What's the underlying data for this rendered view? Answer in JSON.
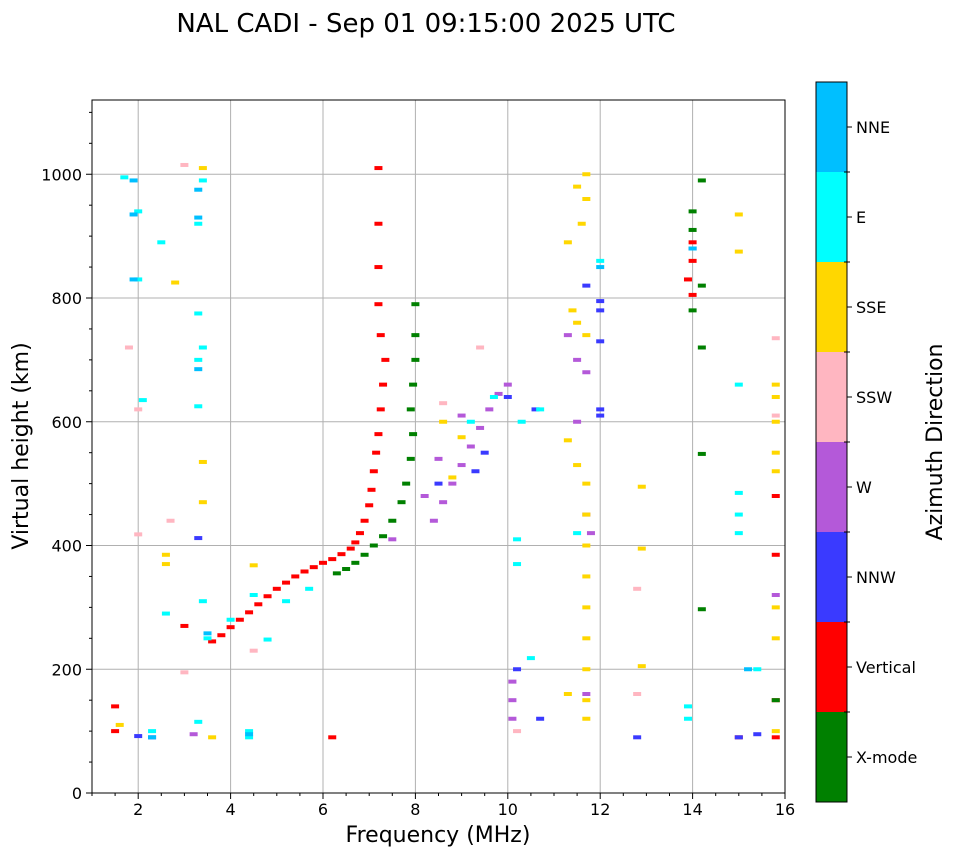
{
  "chart_data": {
    "type": "scatter",
    "title": "NAL CADI - Sep 01 09:15:00 2025 UTC",
    "xlabel": "Frequency (MHz)",
    "ylabel": "Virtual height (km)",
    "xlim": [
      1,
      16
    ],
    "ylim": [
      0,
      1120
    ],
    "xticks": [
      2,
      4,
      6,
      8,
      10,
      12,
      14,
      16
    ],
    "yticks": [
      0,
      200,
      400,
      600,
      800,
      1000
    ],
    "grid": true,
    "colorbar": {
      "title": "Azimuth Direction",
      "categories": [
        {
          "name": "X-mode",
          "color": "#008000"
        },
        {
          "name": "Vertical",
          "color": "#ff0000"
        },
        {
          "name": "NNW",
          "color": "#3a3aff"
        },
        {
          "name": "W",
          "color": "#b459d9"
        },
        {
          "name": "SSW",
          "color": "#ffb6c1"
        },
        {
          "name": "SSE",
          "color": "#ffd700"
        },
        {
          "name": "E",
          "color": "#00ffff"
        },
        {
          "name": "NNE",
          "color": "#00bfff"
        }
      ]
    },
    "series": [
      {
        "name": "Vertical",
        "points": [
          [
            3.6,
            245
          ],
          [
            3.8,
            255
          ],
          [
            4.0,
            268
          ],
          [
            4.2,
            280
          ],
          [
            4.4,
            292
          ],
          [
            4.6,
            305
          ],
          [
            4.8,
            318
          ],
          [
            5.0,
            330
          ],
          [
            5.2,
            340
          ],
          [
            5.4,
            350
          ],
          [
            5.6,
            358
          ],
          [
            5.8,
            365
          ],
          [
            6.0,
            372
          ],
          [
            6.2,
            378
          ],
          [
            6.4,
            386
          ],
          [
            6.6,
            395
          ],
          [
            6.7,
            405
          ],
          [
            6.8,
            420
          ],
          [
            6.9,
            440
          ],
          [
            7.0,
            465
          ],
          [
            7.05,
            490
          ],
          [
            7.1,
            520
          ],
          [
            7.15,
            550
          ],
          [
            7.2,
            580
          ],
          [
            7.25,
            620
          ],
          [
            7.3,
            660
          ],
          [
            7.35,
            700
          ],
          [
            7.25,
            740
          ],
          [
            7.2,
            790
          ],
          [
            7.2,
            850
          ],
          [
            7.2,
            920
          ],
          [
            7.2,
            1010
          ],
          [
            1.5,
            140
          ],
          [
            1.5,
            100
          ],
          [
            3.0,
            270
          ],
          [
            6.2,
            90
          ],
          [
            14.0,
            890
          ],
          [
            14.0,
            860
          ],
          [
            13.9,
            830
          ],
          [
            14.0,
            805
          ],
          [
            15.0,
            90
          ],
          [
            15.8,
            90
          ],
          [
            15.8,
            150
          ],
          [
            15.8,
            385
          ],
          [
            15.8,
            480
          ]
        ]
      },
      {
        "name": "X-mode",
        "points": [
          [
            6.3,
            355
          ],
          [
            6.5,
            362
          ],
          [
            6.7,
            372
          ],
          [
            6.9,
            385
          ],
          [
            7.1,
            400
          ],
          [
            7.3,
            415
          ],
          [
            7.5,
            440
          ],
          [
            7.7,
            470
          ],
          [
            7.8,
            500
          ],
          [
            7.9,
            540
          ],
          [
            7.95,
            580
          ],
          [
            7.9,
            620
          ],
          [
            7.95,
            660
          ],
          [
            8.0,
            700
          ],
          [
            8.0,
            740
          ],
          [
            8.0,
            790
          ],
          [
            14.2,
            990
          ],
          [
            14.0,
            940
          ],
          [
            14.0,
            910
          ],
          [
            14.2,
            820
          ],
          [
            14.0,
            780
          ],
          [
            14.2,
            720
          ],
          [
            14.2,
            548
          ],
          [
            14.2,
            297
          ],
          [
            15.8,
            150
          ]
        ]
      },
      {
        "name": "NNW",
        "points": [
          [
            12.0,
            610
          ],
          [
            12.0,
            620
          ],
          [
            12.0,
            730
          ],
          [
            12.0,
            780
          ],
          [
            12.0,
            795
          ],
          [
            11.7,
            820
          ],
          [
            14.0,
            880
          ],
          [
            10.0,
            640
          ],
          [
            10.6,
            620
          ],
          [
            9.5,
            550
          ],
          [
            9.3,
            520
          ],
          [
            8.5,
            500
          ],
          [
            10.2,
            200
          ],
          [
            10.7,
            120
          ],
          [
            2.0,
            92
          ],
          [
            2.3,
            90
          ],
          [
            3.3,
            412
          ],
          [
            12.8,
            90
          ],
          [
            15.4,
            95
          ],
          [
            15.0,
            90
          ]
        ]
      },
      {
        "name": "W",
        "points": [
          [
            8.4,
            440
          ],
          [
            8.6,
            470
          ],
          [
            8.8,
            500
          ],
          [
            9.0,
            530
          ],
          [
            9.2,
            560
          ],
          [
            9.4,
            590
          ],
          [
            9.6,
            620
          ],
          [
            9.8,
            645
          ],
          [
            10.0,
            660
          ],
          [
            8.2,
            480
          ],
          [
            8.5,
            540
          ],
          [
            9.0,
            610
          ],
          [
            11.3,
            740
          ],
          [
            11.5,
            700
          ],
          [
            11.7,
            680
          ],
          [
            11.5,
            600
          ],
          [
            11.7,
            450
          ],
          [
            11.8,
            420
          ],
          [
            11.7,
            160
          ],
          [
            10.1,
            180
          ],
          [
            10.1,
            150
          ],
          [
            10.1,
            120
          ],
          [
            7.5,
            410
          ],
          [
            3.2,
            95
          ],
          [
            15.8,
            320
          ]
        ]
      },
      {
        "name": "SSW",
        "points": [
          [
            15.8,
            735
          ],
          [
            15.8,
            610
          ],
          [
            12.8,
            330
          ],
          [
            12.8,
            160
          ],
          [
            10.2,
            100
          ],
          [
            4.5,
            230
          ],
          [
            3.0,
            195
          ],
          [
            2.0,
            418
          ],
          [
            2.7,
            440
          ],
          [
            1.8,
            720
          ],
          [
            2.0,
            620
          ],
          [
            3.0,
            1015
          ],
          [
            8.6,
            630
          ],
          [
            9.4,
            720
          ]
        ]
      },
      {
        "name": "SSE",
        "points": [
          [
            11.7,
            1000
          ],
          [
            11.5,
            980
          ],
          [
            11.7,
            960
          ],
          [
            11.6,
            920
          ],
          [
            11.3,
            890
          ],
          [
            11.4,
            780
          ],
          [
            11.5,
            760
          ],
          [
            11.7,
            740
          ],
          [
            11.3,
            570
          ],
          [
            11.5,
            530
          ],
          [
            11.7,
            500
          ],
          [
            11.7,
            450
          ],
          [
            11.7,
            400
          ],
          [
            11.7,
            350
          ],
          [
            11.7,
            300
          ],
          [
            11.7,
            250
          ],
          [
            11.7,
            200
          ],
          [
            11.7,
            150
          ],
          [
            11.7,
            120
          ],
          [
            11.3,
            160
          ],
          [
            12.9,
            495
          ],
          [
            12.9,
            395
          ],
          [
            12.9,
            205
          ],
          [
            15.0,
            935
          ],
          [
            15.0,
            875
          ],
          [
            15.8,
            660
          ],
          [
            15.8,
            640
          ],
          [
            15.8,
            600
          ],
          [
            15.8,
            550
          ],
          [
            15.8,
            520
          ],
          [
            15.8,
            300
          ],
          [
            15.8,
            250
          ],
          [
            15.8,
            100
          ],
          [
            3.4,
            1010
          ],
          [
            3.4,
            535
          ],
          [
            3.4,
            470
          ],
          [
            2.6,
            385
          ],
          [
            2.6,
            370
          ],
          [
            2.8,
            825
          ],
          [
            1.6,
            110
          ],
          [
            3.6,
            90
          ],
          [
            8.6,
            600
          ],
          [
            9.0,
            575
          ],
          [
            8.8,
            510
          ],
          [
            4.5,
            368
          ]
        ]
      },
      {
        "name": "E",
        "points": [
          [
            3.4,
            990
          ],
          [
            3.3,
            920
          ],
          [
            3.3,
            775
          ],
          [
            3.4,
            720
          ],
          [
            3.3,
            700
          ],
          [
            3.3,
            625
          ],
          [
            3.4,
            310
          ],
          [
            3.5,
            250
          ],
          [
            2.0,
            940
          ],
          [
            2.0,
            830
          ],
          [
            2.1,
            635
          ],
          [
            2.5,
            890
          ],
          [
            2.6,
            290
          ],
          [
            4.0,
            280
          ],
          [
            4.4,
            100
          ],
          [
            4.4,
            90
          ],
          [
            4.5,
            320
          ],
          [
            4.8,
            248
          ],
          [
            5.2,
            310
          ],
          [
            5.7,
            330
          ],
          [
            9.2,
            600
          ],
          [
            9.7,
            640
          ],
          [
            10.3,
            600
          ],
          [
            10.7,
            620
          ],
          [
            10.2,
            410
          ],
          [
            10.2,
            370
          ],
          [
            10.5,
            218
          ],
          [
            11.5,
            420
          ],
          [
            12.0,
            860
          ],
          [
            15.0,
            660
          ],
          [
            15.0,
            485
          ],
          [
            15.0,
            450
          ],
          [
            15.0,
            420
          ],
          [
            15.4,
            200
          ],
          [
            13.9,
            140
          ],
          [
            13.9,
            120
          ],
          [
            1.7,
            995
          ],
          [
            2.3,
            100
          ],
          [
            3.3,
            115
          ]
        ]
      },
      {
        "name": "NNE",
        "points": [
          [
            1.9,
            990
          ],
          [
            1.9,
            935
          ],
          [
            1.9,
            830
          ],
          [
            3.3,
            930
          ],
          [
            3.3,
            975
          ],
          [
            3.3,
            685
          ],
          [
            3.5,
            258
          ],
          [
            4.4,
            95
          ],
          [
            2.3,
            90
          ],
          [
            12.0,
            850
          ],
          [
            14.0,
            880
          ],
          [
            15.2,
            200
          ]
        ]
      }
    ]
  }
}
